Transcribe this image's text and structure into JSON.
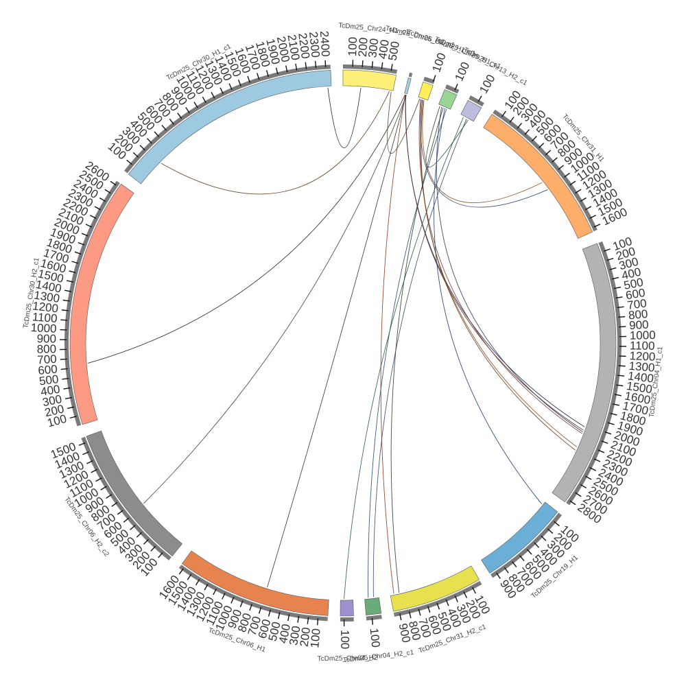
{
  "chromosomes": [
    {
      "name": "TcDm25_Chr24_H1_c1",
      "length": 560,
      "color": "#fff07a"
    },
    {
      "name": "TcDm25_Chr06_H2_c1",
      "length": 30,
      "color": "#a6cee3"
    },
    {
      "name": "TcDm25_Chr26_H1_c1",
      "length": 110,
      "color": "#ffee55"
    },
    {
      "name": "TcDm25_Chr25_H1_c1",
      "length": 140,
      "color": "#99d594"
    },
    {
      "name": "TcDm25_Chr13_H2_c1",
      "length": 160,
      "color": "#bcbddc"
    },
    {
      "name": "TcDm25_Chr31_H1",
      "length": 1640,
      "color": "#fdae6b"
    },
    {
      "name": "TcDm25_Chr04_H1_c1",
      "length": 2840,
      "color": "#b3b3b3"
    },
    {
      "name": "TcDm25_Chr19_H1",
      "length": 960,
      "color": "#6baed6"
    },
    {
      "name": "TcDm25_Chr31_H2_c1",
      "length": 960,
      "color": "#e7e14f"
    },
    {
      "name": "TcDm25_Chr04_H2_c1",
      "length": 160,
      "color": "#6aab7c"
    },
    {
      "name": "TcDm25_Chr04_H2",
      "length": 140,
      "color": "#9e8fcf"
    },
    {
      "name": "TcDm25_Chr06_H1",
      "length": 1640,
      "color": "#e6834f"
    },
    {
      "name": "TcDm25_Chr06_H2_c2",
      "length": 1560,
      "color": "#8c8c8c"
    },
    {
      "name": "TcDm25_Chr30_H2_c1",
      "length": 2640,
      "color": "#fc9a84"
    },
    {
      "name": "TcDm25_Chr30_H1_c1",
      "length": 2450,
      "color": "#9ecae1"
    }
  ],
  "links": [
    {
      "from": "TcDm25_Chr24_H1_c1",
      "pos1": 520,
      "to": "TcDm25_Chr30_H1_c1",
      "pos2": 320,
      "color": "#5a3a1a"
    },
    {
      "from": "TcDm25_Chr24_H1_c1",
      "pos1": 200,
      "to": "TcDm25_Chr30_H1_c1",
      "pos2": 2410,
      "color": "#222222"
    },
    {
      "from": "TcDm25_Chr06_H2_c1",
      "pos1": 10,
      "to": "TcDm25_Chr30_H2_c1",
      "pos2": 640,
      "color": "#222222"
    },
    {
      "from": "TcDm25_Chr06_H2_c1",
      "pos1": 20,
      "to": "TcDm25_Chr06_H1",
      "pos2": 700,
      "color": "#333333"
    },
    {
      "from": "TcDm25_Chr06_H2_c1",
      "pos1": 25,
      "to": "TcDm25_Chr06_H2_c2",
      "pos2": 620,
      "color": "#334a33"
    },
    {
      "from": "TcDm25_Chr26_H1_c1",
      "pos1": 40,
      "to": "TcDm25_Chr31_H1",
      "pos2": 1000,
      "color": "#2b4a7a"
    },
    {
      "from": "TcDm25_Chr26_H1_c1",
      "pos1": 70,
      "to": "TcDm25_Chr31_H1",
      "pos2": 900,
      "color": "#8a4a1a"
    },
    {
      "from": "TcDm25_Chr06_H2_c1",
      "pos1": 15,
      "to": "TcDm25_Chr04_H1_c1",
      "pos2": 2020,
      "color": "#222244"
    },
    {
      "from": "TcDm25_Chr06_H2_c1",
      "pos1": 18,
      "to": "TcDm25_Chr04_H1_c1",
      "pos2": 2060,
      "color": "#5a2a2a"
    },
    {
      "from": "TcDm25_Chr26_H1_c1",
      "pos1": 30,
      "to": "TcDm25_Chr04_H1_c1",
      "pos2": 2100,
      "color": "#7a3a3a"
    },
    {
      "from": "TcDm25_Chr26_H1_c1",
      "pos1": 50,
      "to": "TcDm25_Chr04_H1_c1",
      "pos2": 2260,
      "color": "#8a4a1a"
    },
    {
      "from": "TcDm25_Chr26_H1_c1",
      "pos1": 60,
      "to": "TcDm25_Chr04_H1_c1",
      "pos2": 2300,
      "color": "#6a3a1a"
    },
    {
      "from": "TcDm25_Chr25_H1_c1",
      "pos1": 40,
      "to": "TcDm25_Chr04_H1_c1",
      "pos2": 2080,
      "color": "#2a3a5a"
    },
    {
      "from": "TcDm25_Chr25_H1_c1",
      "pos1": 80,
      "to": "TcDm25_Chr19_H1",
      "pos2": 40,
      "color": "#1f3a6a"
    },
    {
      "from": "TcDm25_Chr06_H2_c1",
      "pos1": 12,
      "to": "TcDm25_Chr31_H2_c1",
      "pos2": 920,
      "color": "#8a3a1a"
    },
    {
      "from": "TcDm25_Chr25_H1_c1",
      "pos1": 60,
      "to": "TcDm25_Chr31_H2_c1",
      "pos2": 860,
      "color": "#2a3a2a"
    },
    {
      "from": "TcDm25_Chr25_H1_c1",
      "pos1": 100,
      "to": "TcDm25_Chr04_H2_c1",
      "pos2": 120,
      "color": "#2a4a6a"
    },
    {
      "from": "TcDm25_Chr13_H2_c1",
      "pos1": 40,
      "to": "TcDm25_Chr04_H2",
      "pos2": 100,
      "color": "#2a5a4a"
    },
    {
      "from": "TcDm25_Chr13_H2_c1",
      "pos1": 80,
      "to": "TcDm25_Chr04_H2_c1",
      "pos2": 60,
      "color": "#3a4a6a"
    },
    {
      "from": "TcDm25_Chr25_H1_c1",
      "pos1": 20,
      "to": "TcDm25_Chr13_H2_c1",
      "pos2": 100,
      "color": "#224422"
    },
    {
      "from": "TcDm25_Chr24_H1_c1",
      "pos1": 540,
      "to": "TcDm25_Chr26_H1_c1",
      "pos2": 20,
      "color": "#444422"
    }
  ]
}
